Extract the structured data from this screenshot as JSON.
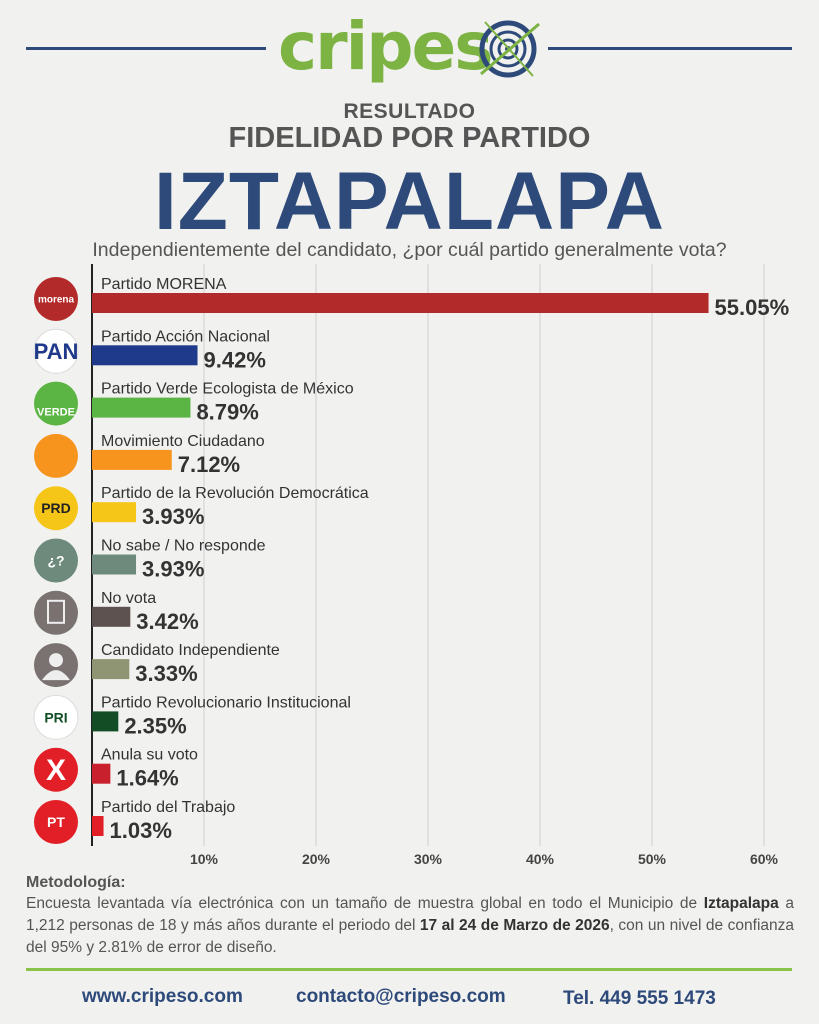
{
  "brand": {
    "logo_part1": "cripes",
    "logo_green": "#7cb342",
    "logo_blue": "#2d4a7a"
  },
  "header": {
    "line1": "RESULTADO",
    "line2": "FIDELIDAD POR PARTIDO",
    "location": "IZTAPALAPA",
    "question": "Independientemente del candidato, ¿por cuál partido generalmente vota?"
  },
  "chart_data": {
    "type": "bar",
    "orientation": "horizontal",
    "categories": [
      "Partido MORENA",
      "Partido Acción Nacional",
      "Partido Verde Ecologista de México",
      "Movimiento Ciudadano",
      "Partido de la Revolución Democrática",
      "No sabe / No responde",
      "No vota",
      "Candidato Independiente",
      "Partido Revolucionario Institucional",
      "Anula su voto",
      "Partido del Trabajo"
    ],
    "values": [
      55.05,
      9.42,
      8.79,
      7.12,
      3.93,
      3.93,
      3.42,
      3.33,
      2.35,
      1.64,
      1.03
    ],
    "value_labels": [
      "55.05%",
      "9.42%",
      "8.79%",
      "7.12%",
      "3.93%",
      "3.93%",
      "3.42%",
      "3.33%",
      "2.35%",
      "1.64%",
      "1.03%"
    ],
    "colors": [
      "#b22a2a",
      "#1f3a8a",
      "#5bb544",
      "#f7941d",
      "#f5c518",
      "#6e8a7c",
      "#5e5250",
      "#8f9472",
      "#124d25",
      "#c8212d",
      "#e21f26"
    ],
    "icon_names": [
      "morena-logo-icon",
      "pan-logo-icon",
      "verde-logo-icon",
      "mc-logo-icon",
      "prd-logo-icon",
      "question-icon",
      "ballot-icon",
      "person-icon",
      "pri-logo-icon",
      "cross-icon",
      "pt-logo-icon"
    ],
    "icon_labels": [
      "morena",
      "PAN",
      "VERDE",
      "",
      "PRD",
      "¿?",
      "",
      "",
      "PRI",
      "X",
      "PT"
    ],
    "x_ticks": [
      10,
      20,
      30,
      40,
      50,
      60
    ],
    "x_tick_labels": [
      "10%",
      "20%",
      "30%",
      "40%",
      "50%",
      "60%"
    ],
    "xlim": [
      0,
      60
    ],
    "grid": true,
    "title": "",
    "xlabel": "",
    "ylabel": ""
  },
  "methodology": {
    "title": "Metodología:",
    "p1": "Encuesta levantada vía electrónica con un tamaño de muestra global en todo el Municipio de ",
    "place": "Iztapalapa",
    "p2": " a 1,212 personas de 18 y más años durante el periodo del ",
    "dates": "17 al 24 de Marzo de 2026",
    "p3": ", con un nivel de confianza del 95% y 2.81% de error de diseño."
  },
  "footer": {
    "website": "www.cripeso.com",
    "email": "contacto@cripeso.com",
    "phone": "Tel. 449 555 1473"
  }
}
